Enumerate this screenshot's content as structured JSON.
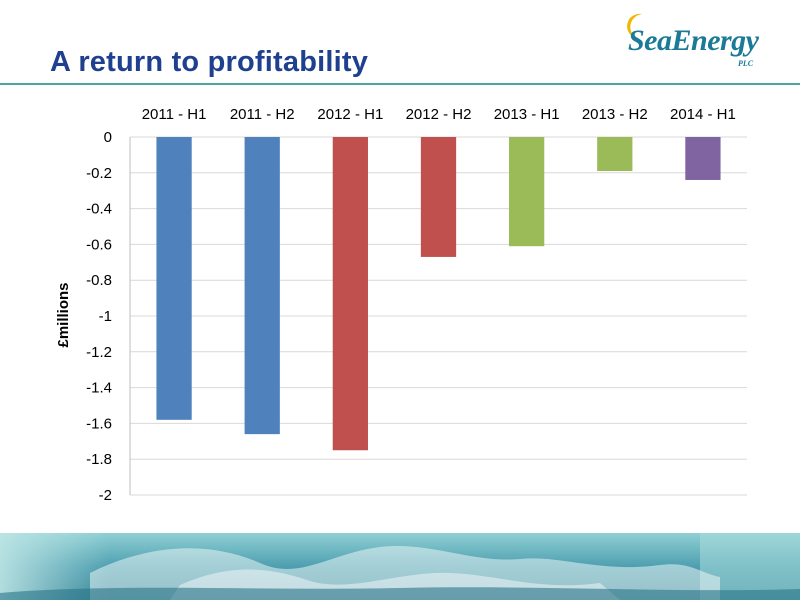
{
  "slide": {
    "title": "A return to profitability",
    "logo": {
      "name": "SeaEnergy",
      "suffix": "PLC"
    }
  },
  "colors": {
    "title": "#1f3f8f",
    "rule": "#4aa79b",
    "blue": "#4f81bd",
    "red": "#c0504d",
    "green": "#9bbb59",
    "purple": "#8064a2",
    "gridline": "#d9d9d9",
    "logo": "#1a7a97",
    "moon": "#f2b705"
  },
  "chart_data": {
    "type": "bar",
    "categories": [
      "2011 - H1",
      "2011 - H2",
      "2012 - H1",
      "2012 - H2",
      "2013 - H1",
      "2013 - H2",
      "2014 - H1"
    ],
    "values": [
      -1.58,
      -1.66,
      -1.75,
      -0.67,
      -0.61,
      -0.19,
      -0.24
    ],
    "bar_colors": [
      "#4f81bd",
      "#4f81bd",
      "#c0504d",
      "#c0504d",
      "#9bbb59",
      "#9bbb59",
      "#8064a2"
    ],
    "ylabel": "£millions",
    "ylim": [
      -2,
      0
    ],
    "yticks": [
      0,
      -0.2,
      -0.4,
      -0.6,
      -0.8,
      -1,
      -1.2,
      -1.4,
      -1.6,
      -1.8,
      -2
    ],
    "ytick_labels": [
      "0",
      "-0.2",
      "-0.4",
      "-0.6",
      "-0.8",
      "-1",
      "-1.2",
      "-1.4",
      "-1.6",
      "-1.8",
      "-2"
    ],
    "xaxis_position": "top",
    "grid": true,
    "legend": false
  }
}
